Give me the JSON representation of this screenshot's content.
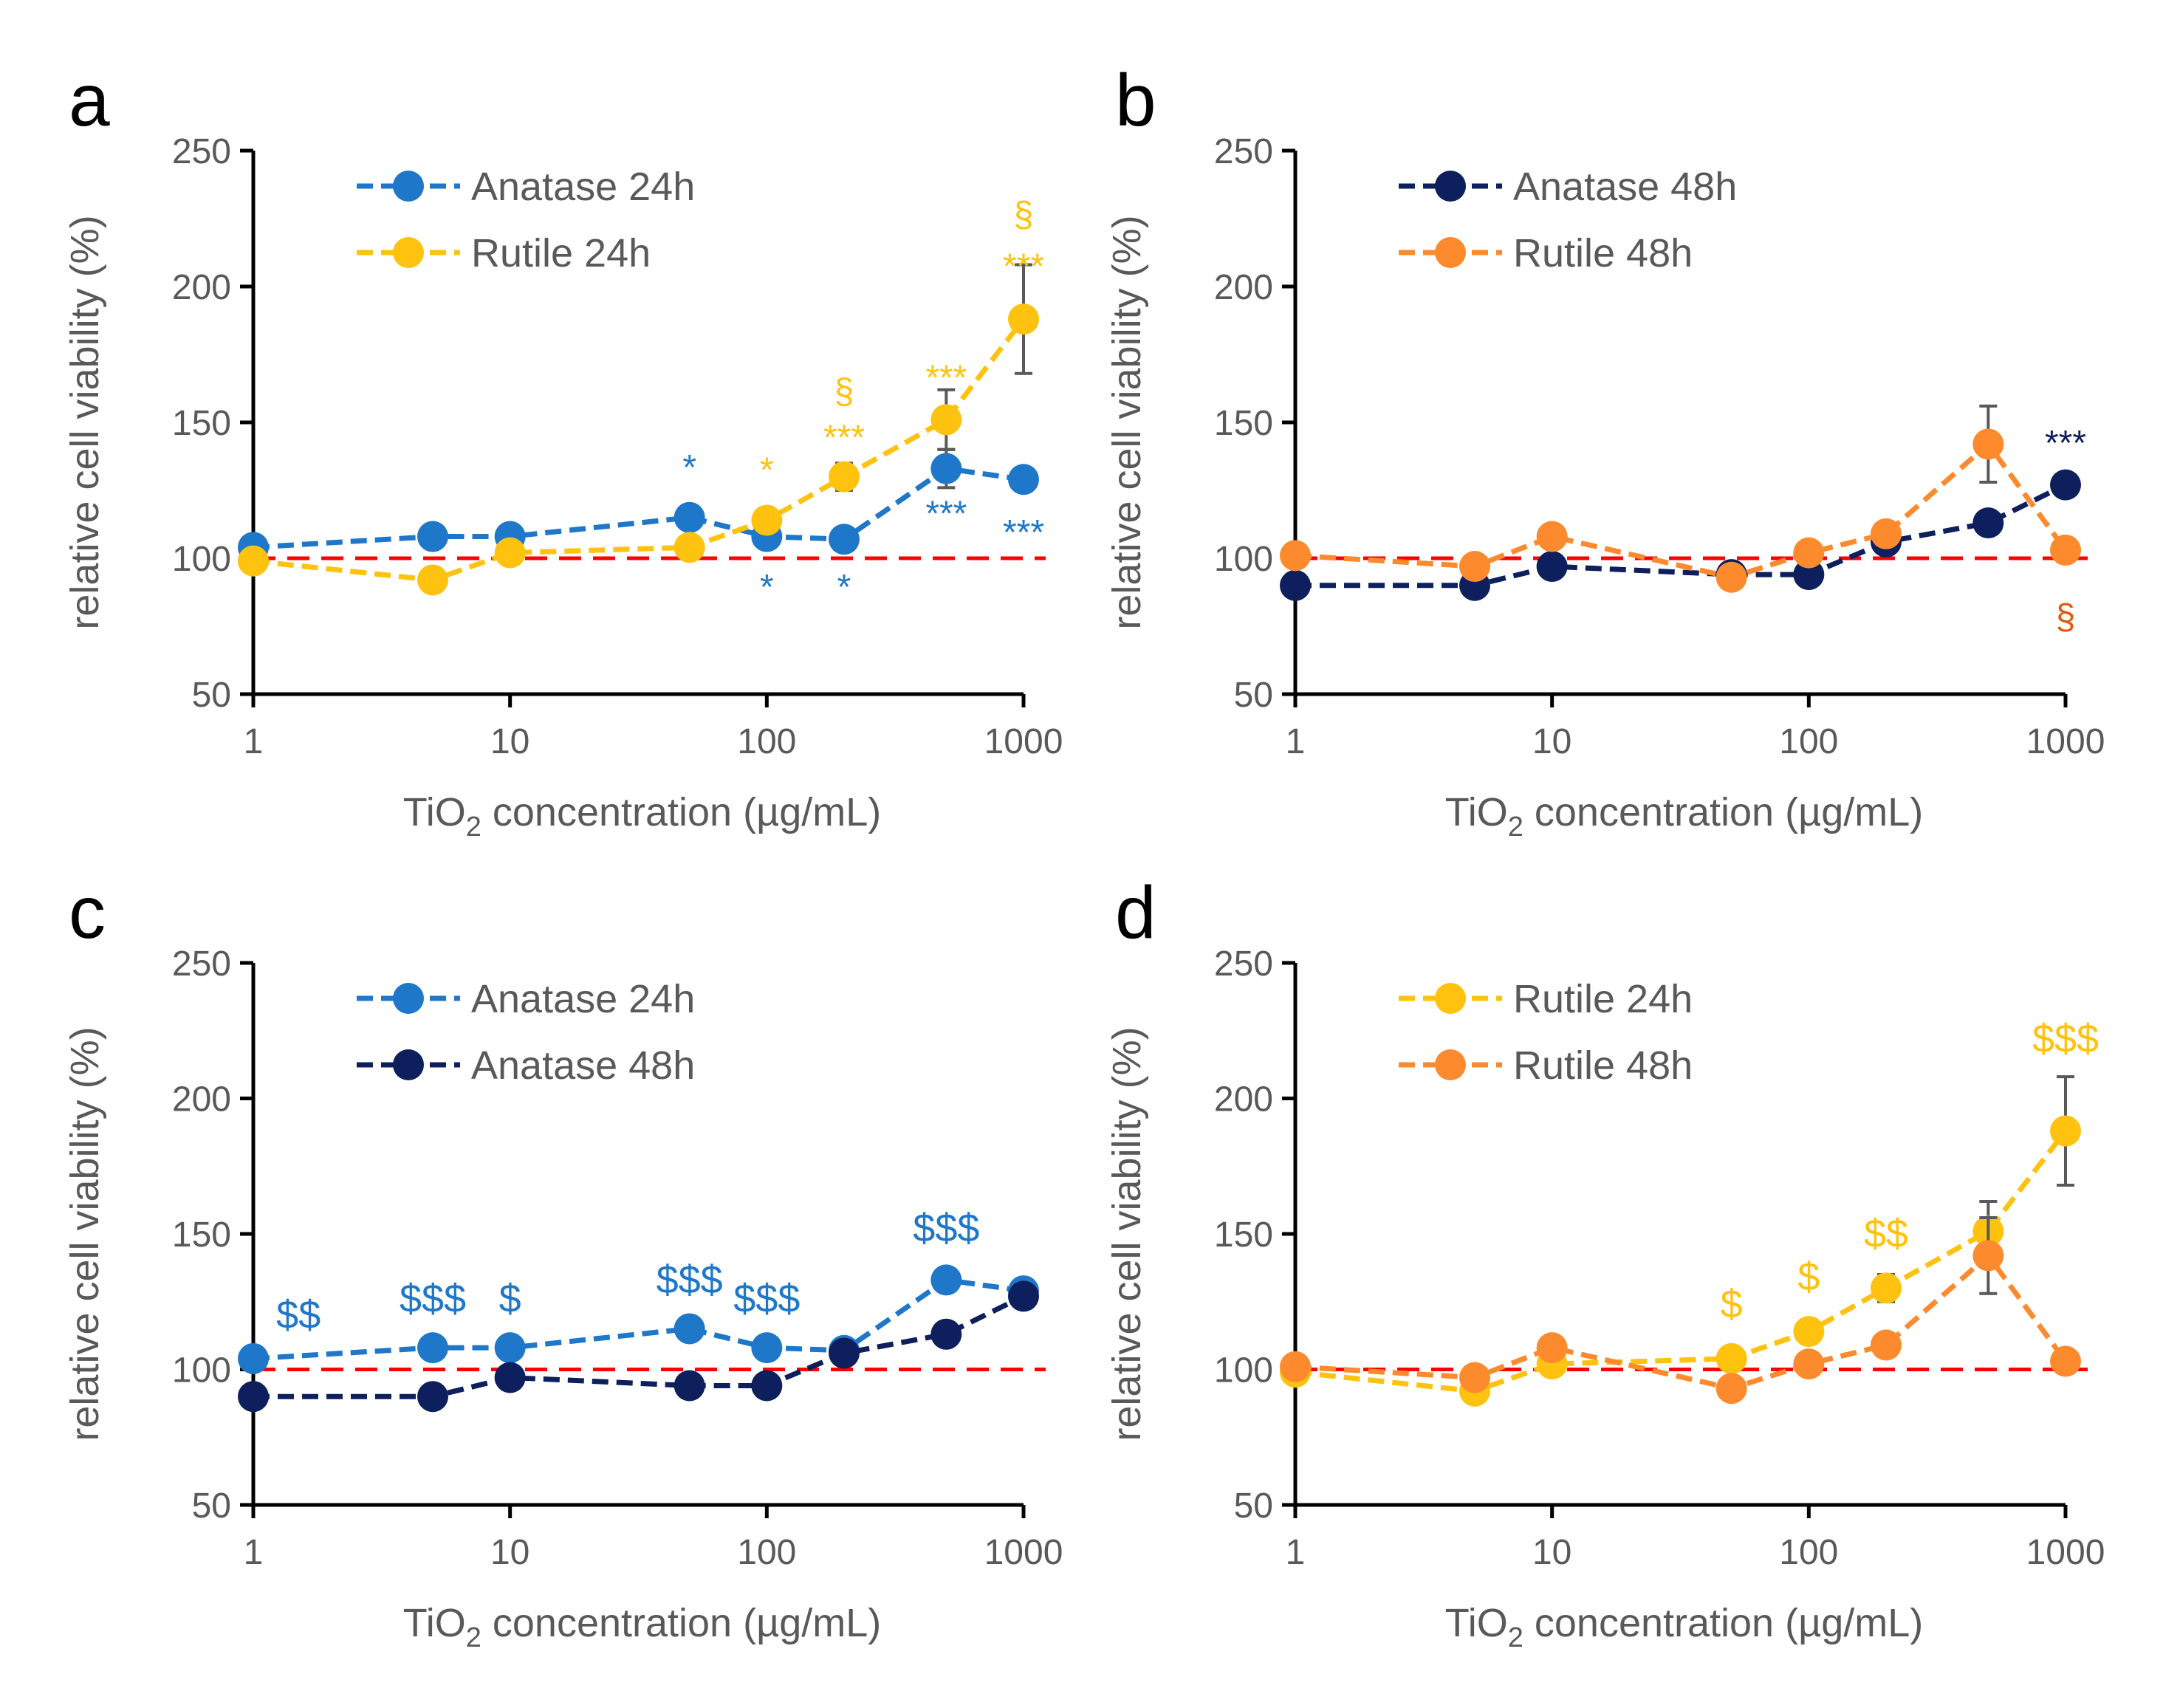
{
  "figure": {
    "panels": [
      {
        "letter": "a",
        "xlabel_main": "TiO",
        "xlabel_sub": "2",
        "xlabel_rest": " concentration (µg/mL)",
        "ylabel": "relative cell viability (%)"
      },
      {
        "letter": "b",
        "xlabel_main": "TiO",
        "xlabel_sub": "2",
        "xlabel_rest": " concentration (µg/mL)",
        "ylabel": "relative cell viability (%)"
      },
      {
        "letter": "c",
        "xlabel_main": "TiO",
        "xlabel_sub": "2",
        "xlabel_rest": " concentration (µg/mL)",
        "ylabel": "relative cell viability (%)"
      },
      {
        "letter": "d",
        "xlabel_main": "TiO",
        "xlabel_sub": "2",
        "xlabel_rest": " concentration (µg/mL)",
        "ylabel": "relative cell viability (%)"
      }
    ]
  },
  "chart_data": [
    {
      "panel": "a",
      "type": "line",
      "x_scale": "log",
      "x": [
        1,
        5,
        10,
        50,
        100,
        200,
        500,
        1000
      ],
      "xticks": [
        "1",
        "10",
        "100",
        "1000"
      ],
      "xtick_values": [
        1,
        10,
        100,
        1000
      ],
      "ylim": [
        50,
        250
      ],
      "yticks": [
        "50",
        "100",
        "150",
        "200",
        "250"
      ],
      "ytick_values": [
        50,
        100,
        150,
        200,
        250
      ],
      "xlabel": "TiO2 concentration (µg/mL)",
      "ylabel": "relative cell viability (%)",
      "reference_line": 100,
      "legend_position": "top-left",
      "series": [
        {
          "name": "Anatase 24h",
          "color": "#1f77c9",
          "values": [
            104,
            108,
            108,
            115,
            108,
            107,
            133,
            129
          ],
          "errors": [
            0,
            0,
            0,
            0,
            0,
            0,
            7,
            0
          ]
        },
        {
          "name": "Rutile 24h",
          "color": "#ffc20e",
          "values": [
            99,
            92,
            102,
            104,
            114,
            130,
            151,
            188
          ],
          "errors": [
            0,
            0,
            0,
            0,
            0,
            5,
            11,
            20
          ]
        }
      ],
      "annotations": [
        {
          "text": "*",
          "x": 50,
          "y": 134,
          "color": "#1f77c9"
        },
        {
          "text": "*",
          "x": 100,
          "y": 133,
          "color": "#ffc20e"
        },
        {
          "text": "*",
          "x": 100,
          "y": 90,
          "color": "#1f77c9"
        },
        {
          "text": "§",
          "x": 200,
          "y": 162,
          "color": "#ffc20e"
        },
        {
          "text": "***",
          "x": 200,
          "y": 145,
          "color": "#ffc20e"
        },
        {
          "text": "*",
          "x": 200,
          "y": 90,
          "color": "#1f77c9"
        },
        {
          "text": "***",
          "x": 500,
          "y": 167,
          "color": "#ffc20e"
        },
        {
          "text": "***",
          "x": 500,
          "y": 117,
          "color": "#1f77c9"
        },
        {
          "text": "§",
          "x": 1000,
          "y": 227,
          "color": "#ffc20e"
        },
        {
          "text": "***",
          "x": 1000,
          "y": 208,
          "color": "#ffc20e"
        },
        {
          "text": "***",
          "x": 1000,
          "y": 110,
          "color": "#1f77c9"
        }
      ]
    },
    {
      "panel": "b",
      "type": "line",
      "x_scale": "log",
      "x": [
        1,
        5,
        10,
        50,
        100,
        200,
        500,
        1000
      ],
      "xticks": [
        "1",
        "10",
        "100",
        "1000"
      ],
      "xtick_values": [
        1,
        10,
        100,
        1000
      ],
      "ylim": [
        50,
        250
      ],
      "yticks": [
        "50",
        "100",
        "150",
        "200",
        "250"
      ],
      "ytick_values": [
        50,
        100,
        150,
        200,
        250
      ],
      "xlabel": "TiO2 concentration (µg/mL)",
      "ylabel": "relative cell viability (%)",
      "reference_line": 100,
      "legend_position": "top-left",
      "series": [
        {
          "name": "Anatase 48h",
          "color": "#0d1f5c",
          "values": [
            90,
            90,
            97,
            94,
            94,
            106,
            113,
            127
          ],
          "errors": [
            0,
            0,
            0,
            0,
            0,
            0,
            0,
            0
          ]
        },
        {
          "name": "Rutile 48h",
          "color": "#fd8a2d",
          "values": [
            101,
            97,
            108,
            93,
            102,
            109,
            142,
            103
          ],
          "errors": [
            0,
            0,
            0,
            0,
            0,
            0,
            14,
            0
          ]
        }
      ],
      "annotations": [
        {
          "text": "***",
          "x": 1000,
          "y": 143,
          "color": "#0d1f5c"
        },
        {
          "text": "§",
          "x": 1000,
          "y": 79,
          "color": "#e05a0c"
        }
      ]
    },
    {
      "panel": "c",
      "type": "line",
      "x_scale": "log",
      "x": [
        1,
        5,
        10,
        50,
        100,
        200,
        500,
        1000
      ],
      "xticks": [
        "1",
        "10",
        "100",
        "1000"
      ],
      "xtick_values": [
        1,
        10,
        100,
        1000
      ],
      "ylim": [
        50,
        250
      ],
      "yticks": [
        "50",
        "100",
        "150",
        "200",
        "250"
      ],
      "ytick_values": [
        50,
        100,
        150,
        200,
        250
      ],
      "xlabel": "TiO2 concentration (µg/mL)",
      "ylabel": "relative cell viability (%)",
      "reference_line": 100,
      "legend_position": "top-left",
      "series": [
        {
          "name": "Anatase 24h",
          "color": "#1f77c9",
          "values": [
            104,
            108,
            108,
            115,
            108,
            107,
            133,
            129
          ],
          "errors": [
            0,
            0,
            0,
            0,
            0,
            0,
            0,
            0
          ]
        },
        {
          "name": "Anatase 48h",
          "color": "#0d1f5c",
          "values": [
            90,
            90,
            97,
            94,
            94,
            106,
            113,
            127
          ],
          "errors": [
            0,
            0,
            0,
            0,
            0,
            0,
            0,
            0
          ]
        }
      ],
      "annotations": [
        {
          "text": "$$",
          "x": 1.5,
          "y": 120,
          "color": "#1f77c9"
        },
        {
          "text": "$$$",
          "x": 5,
          "y": 126,
          "color": "#1f77c9"
        },
        {
          "text": "$",
          "x": 10,
          "y": 126,
          "color": "#1f77c9"
        },
        {
          "text": "$$$",
          "x": 50,
          "y": 133,
          "color": "#1f77c9"
        },
        {
          "text": "$$$",
          "x": 100,
          "y": 126,
          "color": "#1f77c9"
        },
        {
          "text": "$$$",
          "x": 500,
          "y": 152,
          "color": "#1f77c9"
        }
      ]
    },
    {
      "panel": "d",
      "type": "line",
      "x_scale": "log",
      "x": [
        1,
        5,
        10,
        50,
        100,
        200,
        500,
        1000
      ],
      "xticks": [
        "1",
        "10",
        "100",
        "1000"
      ],
      "xtick_values": [
        1,
        10,
        100,
        1000
      ],
      "ylim": [
        50,
        250
      ],
      "yticks": [
        "50",
        "100",
        "150",
        "200",
        "250"
      ],
      "ytick_values": [
        50,
        100,
        150,
        200,
        250
      ],
      "xlabel": "TiO2 concentration (µg/mL)",
      "ylabel": "relative cell viability (%)",
      "reference_line": 100,
      "legend_position": "top-left",
      "series": [
        {
          "name": "Rutile 24h",
          "color": "#ffc20e",
          "values": [
            99,
            92,
            102,
            104,
            114,
            130,
            151,
            188
          ],
          "errors": [
            0,
            0,
            0,
            0,
            0,
            5,
            11,
            20
          ]
        },
        {
          "name": "Rutile 48h",
          "color": "#fd8a2d",
          "values": [
            101,
            97,
            108,
            93,
            102,
            109,
            142,
            103
          ],
          "errors": [
            0,
            0,
            0,
            0,
            0,
            0,
            14,
            0
          ]
        }
      ],
      "annotations": [
        {
          "text": "$",
          "x": 50,
          "y": 124,
          "color": "#ffc20e"
        },
        {
          "text": "$",
          "x": 100,
          "y": 134,
          "color": "#ffc20e"
        },
        {
          "text": "$$",
          "x": 200,
          "y": 150,
          "color": "#ffc20e"
        },
        {
          "text": "$$$",
          "x": 1000,
          "y": 222,
          "color": "#ffc20e"
        }
      ]
    }
  ]
}
